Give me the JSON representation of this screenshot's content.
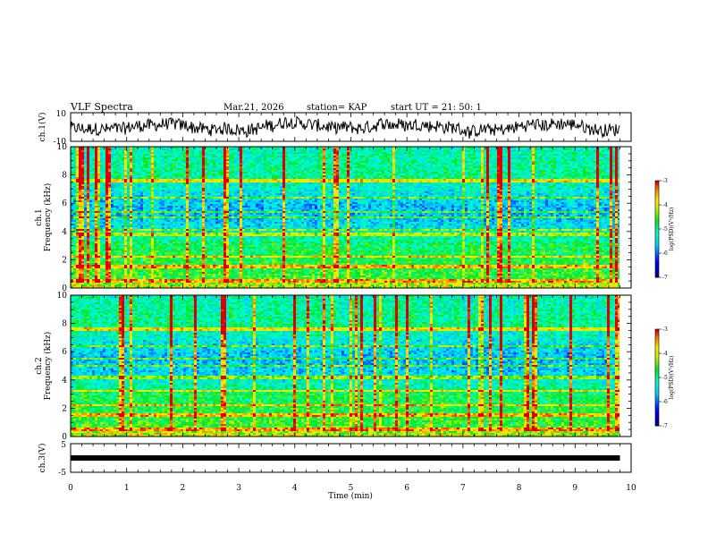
{
  "header": {
    "title": "VLF Spectra",
    "date": "Mar.21, 2026",
    "station": "station= KAP",
    "start": "start  UT  =   21: 50: 1"
  },
  "chart_data": [
    {
      "type": "line",
      "panel": "ch1-waveform",
      "ylabel": "ch.1(V)",
      "ylim": [
        -10,
        10
      ],
      "yticks": [
        "10",
        "-10"
      ],
      "xlim": [
        0,
        10
      ]
    },
    {
      "type": "heatmap",
      "panel": "ch1-spectrogram",
      "ylabel": "ch.1\nFrequency (kHz)",
      "ylabel_line1": "ch.1",
      "ylabel_line2": "Frequency (kHz)",
      "ylim": [
        0,
        10
      ],
      "yticks": [
        "0",
        "2",
        "4",
        "6",
        "8",
        "10"
      ],
      "xlim": [
        0,
        9.8
      ],
      "colorbar": {
        "label": "log(PSD)(V²/Hz)",
        "range": [
          -7,
          -3
        ],
        "ticks": [
          "-3",
          "-4",
          "-5",
          "-6",
          "-7"
        ]
      },
      "bands_khz": [
        0.2,
        0.5,
        1.5,
        2.2,
        3.8,
        4.1,
        5.0,
        5.4,
        6.4,
        7.6
      ]
    },
    {
      "type": "heatmap",
      "panel": "ch2-spectrogram",
      "ylabel": "ch.2\nFrequency (kHz)",
      "ylabel_line1": "ch.2",
      "ylabel_line2": "Frequency (kHz)",
      "ylim": [
        0,
        10
      ],
      "yticks": [
        "0",
        "2",
        "4",
        "6",
        "8",
        "10"
      ],
      "xlim": [
        0,
        9.8
      ],
      "colorbar": {
        "label": "log(PSD)(V²/Hz)",
        "range": [
          -7,
          -3
        ],
        "ticks": [
          "-3",
          "-4",
          "-5",
          "-6",
          "-7"
        ]
      },
      "bands_khz": [
        0.2,
        0.5,
        1.5,
        2.2,
        3.2,
        4.2,
        5.0,
        5.5,
        6.4,
        7.6
      ]
    },
    {
      "type": "line",
      "panel": "ch3-waveform",
      "ylabel": "ch.3(V)",
      "ylim": [
        -5,
        5
      ],
      "yticks": [
        "5",
        "-5"
      ],
      "level": 0,
      "xlim": [
        0,
        9.8
      ]
    }
  ],
  "xaxis": {
    "label": "Time  (min)",
    "ticks": [
      "0",
      "1",
      "2",
      "3",
      "4",
      "5",
      "6",
      "7",
      "8",
      "9",
      "10"
    ],
    "range": [
      0,
      10
    ]
  }
}
